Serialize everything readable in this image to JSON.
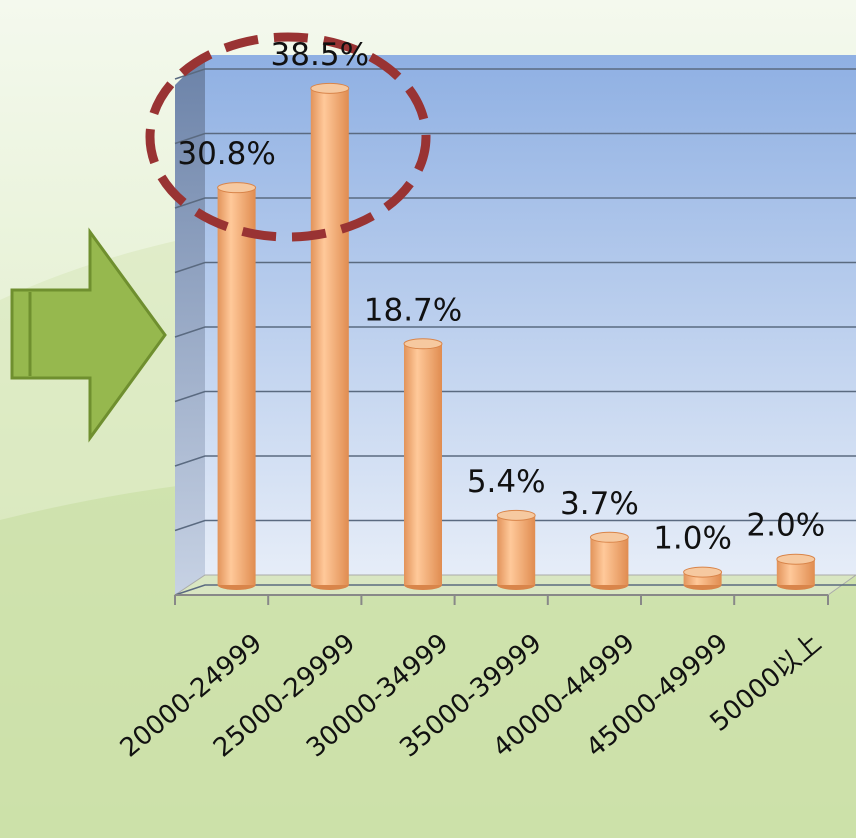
{
  "chart_data": {
    "type": "bar",
    "categories": [
      "20000-24999",
      "25000-29999",
      "30000-34999",
      "35000-39999",
      "40000-44999",
      "45000-49999",
      "50000以上"
    ],
    "values": [
      30.8,
      38.5,
      18.7,
      5.4,
      3.7,
      1.0,
      2.0
    ],
    "value_labels": [
      "30.8%",
      "38.5%",
      "18.7%",
      "5.4%",
      "3.7%",
      "1.0%",
      "2.0%"
    ],
    "color": "#f7b57c",
    "ylim": [
      0,
      40
    ],
    "yticks": [
      0,
      5,
      10,
      15,
      20,
      25,
      30,
      35,
      40
    ],
    "grid": true
  }
}
